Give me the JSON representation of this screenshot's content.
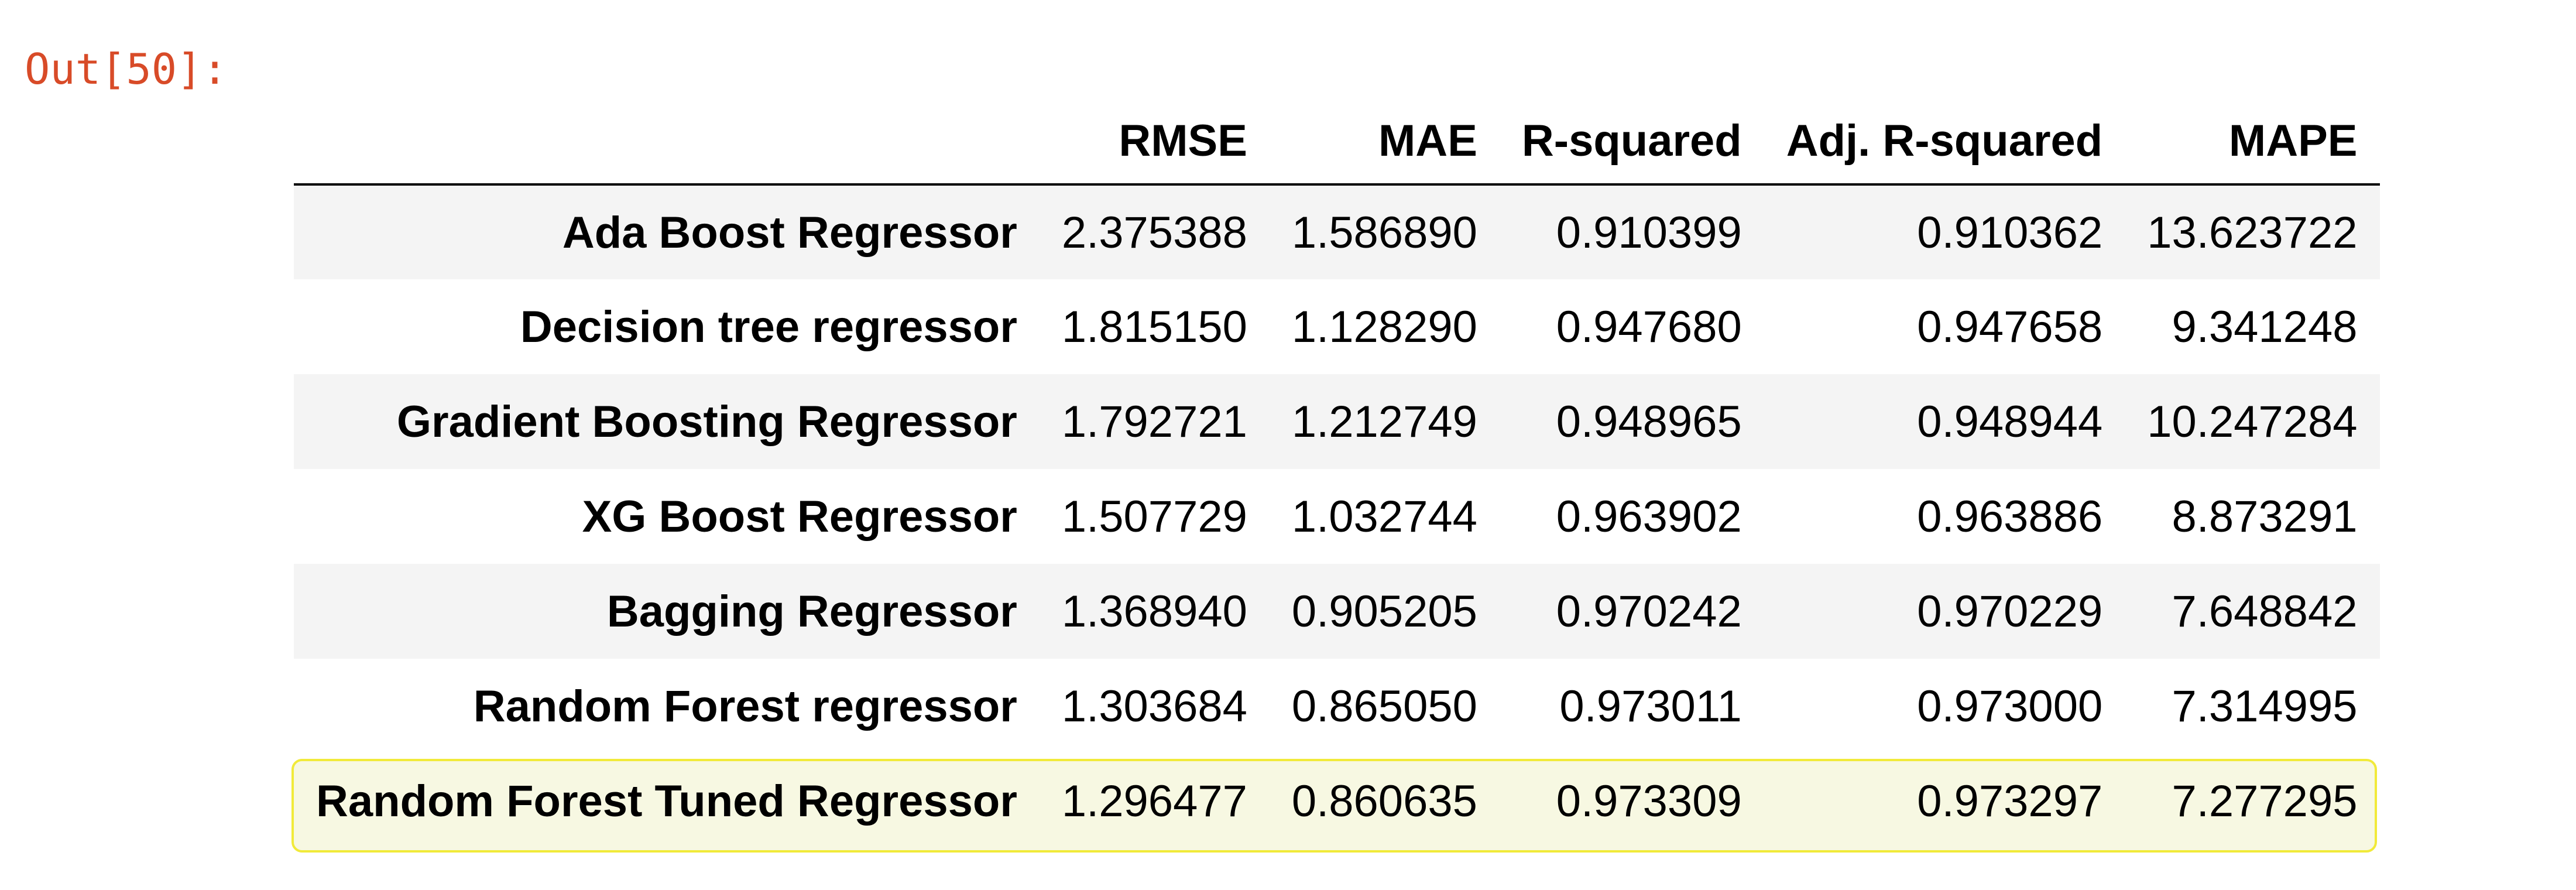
{
  "output_prompt": "Out[50]:",
  "table": {
    "columns": [
      "",
      "RMSE",
      "MAE",
      "R-squared",
      "Adj. R-squared",
      "MAPE"
    ],
    "rows": [
      {
        "label": "Ada Boost Regressor",
        "values": [
          "2.375388",
          "1.586890",
          "0.910399",
          "0.910362",
          "13.623722"
        ]
      },
      {
        "label": "Decision tree regressor",
        "values": [
          "1.815150",
          "1.128290",
          "0.947680",
          "0.947658",
          "9.341248"
        ]
      },
      {
        "label": "Gradient Boosting Regressor",
        "values": [
          "1.792721",
          "1.212749",
          "0.948965",
          "0.948944",
          "10.247284"
        ]
      },
      {
        "label": "XG Boost Regressor",
        "values": [
          "1.507729",
          "1.032744",
          "0.963902",
          "0.963886",
          "8.873291"
        ]
      },
      {
        "label": "Bagging Regressor",
        "values": [
          "1.368940",
          "0.905205",
          "0.970242",
          "0.970229",
          "7.648842"
        ]
      },
      {
        "label": "Random Forest regressor",
        "values": [
          "1.303684",
          "0.865050",
          "0.973011",
          "0.973000",
          "7.314995"
        ]
      },
      {
        "label": "Random Forest Tuned Regressor",
        "values": [
          "1.296477",
          "0.860635",
          "0.973309",
          "0.973297",
          "7.277295"
        ]
      }
    ],
    "highlighted_row": "Random Forest Tuned Regressor",
    "highlight_color": "#f4ef43",
    "stripe_color": "#f4f4f4"
  }
}
